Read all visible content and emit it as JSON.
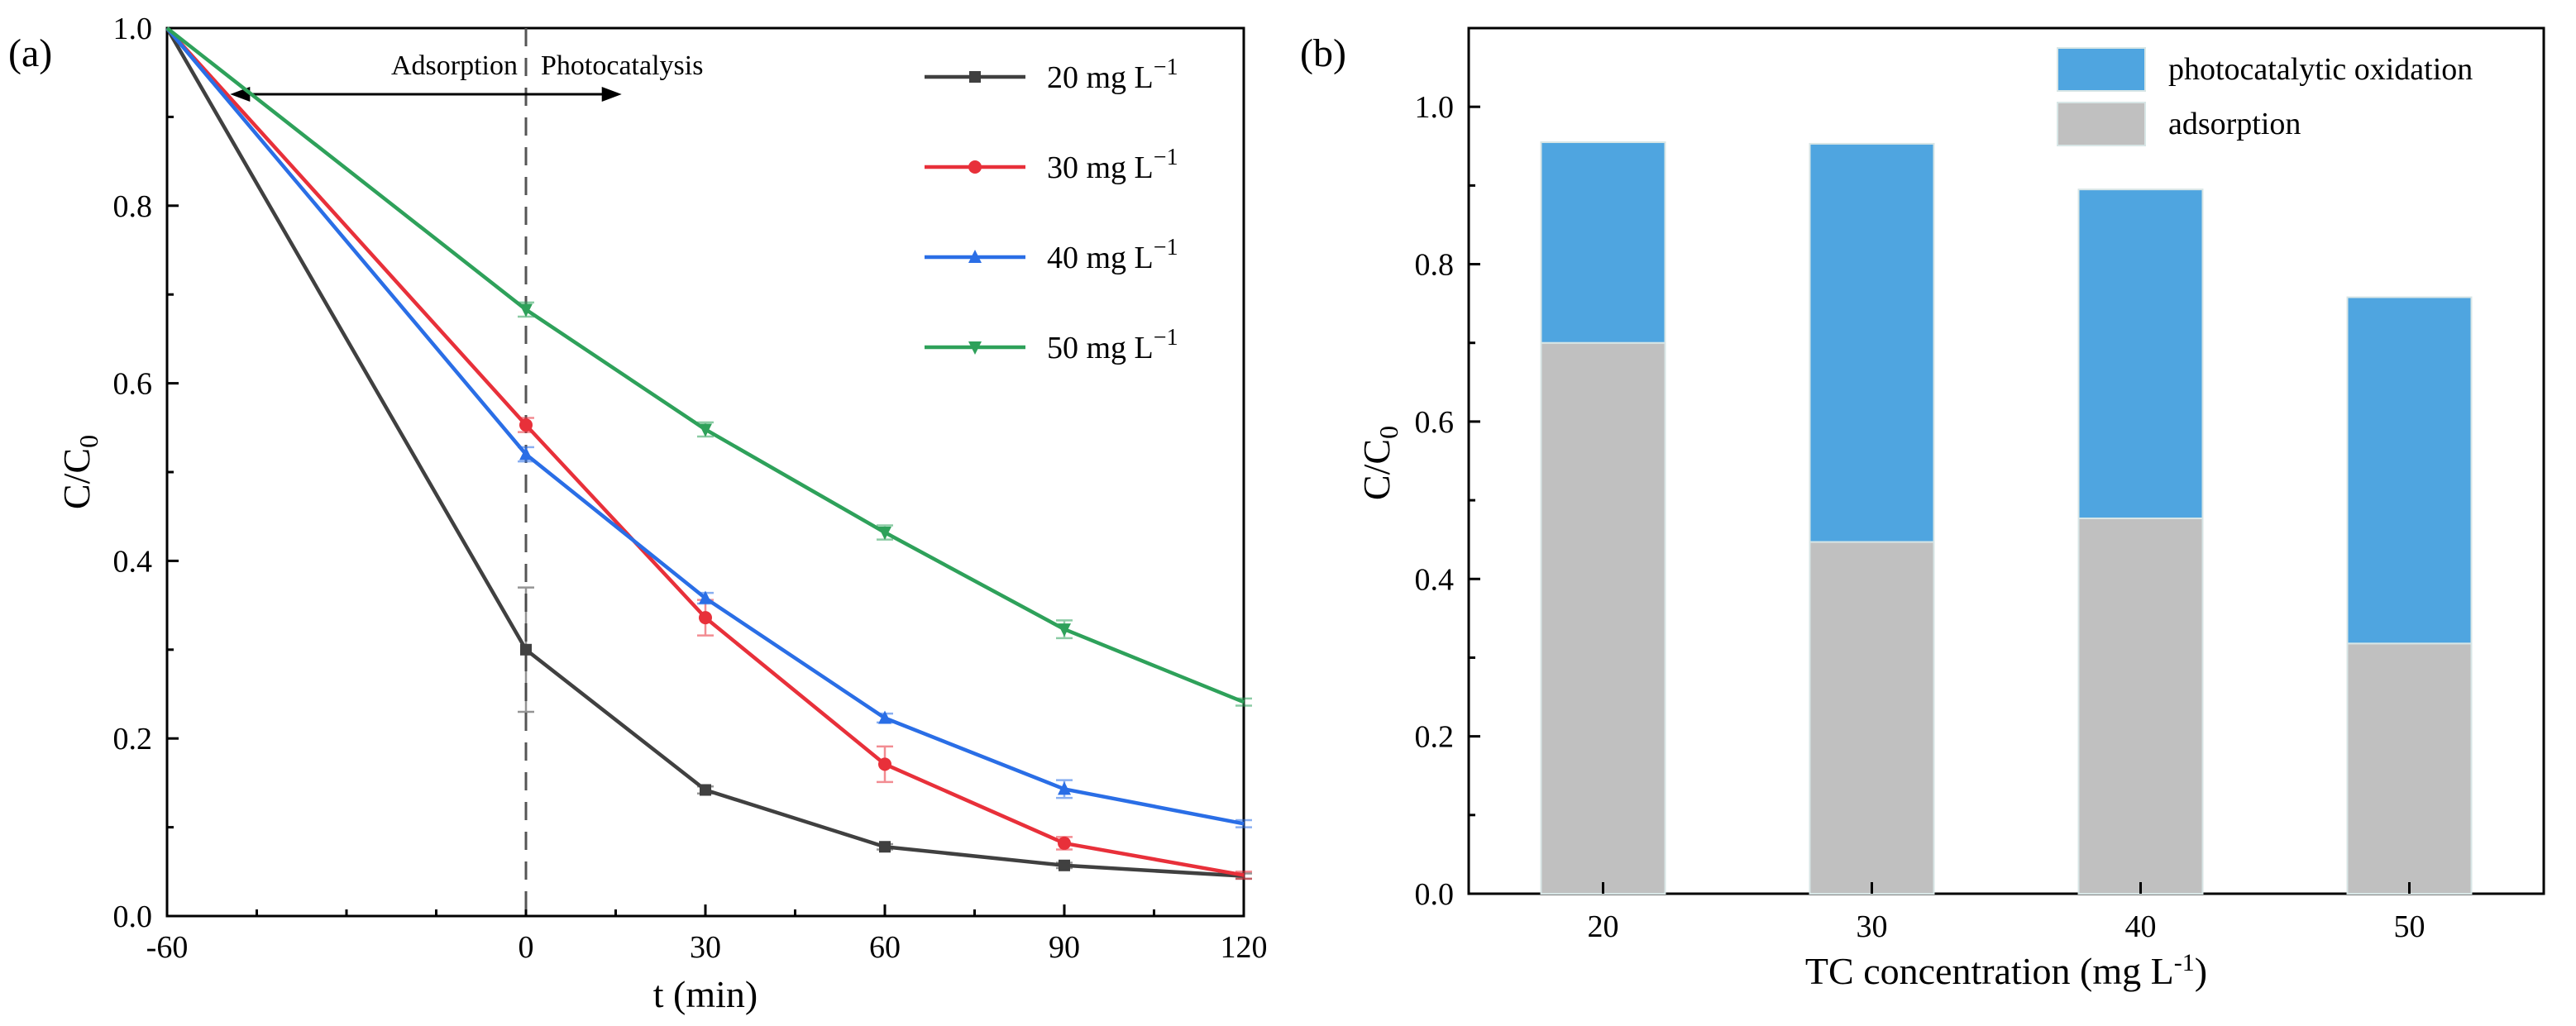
{
  "chart_data": [
    {
      "type": "line",
      "panel_label": "(a)",
      "xlabel": "t (min)",
      "ylabel": "C/C",
      "ylabel_sub": "0",
      "xlim": [
        -60,
        120
      ],
      "ylim": [
        0,
        1.0
      ],
      "xticks": [
        -60,
        0,
        30,
        60,
        90,
        120
      ],
      "xtick_labels": [
        "-60",
        "0",
        "30",
        "60",
        "90",
        "120"
      ],
      "yticks": [
        0,
        0.2,
        0.4,
        0.6,
        0.8,
        1.0
      ],
      "ytick_labels": [
        "0.0",
        "0.2",
        "0.4",
        "0.6",
        "0.8",
        "1.0"
      ],
      "x": [
        -60,
        0,
        30,
        60,
        90,
        120
      ],
      "annotations": {
        "divider_x": 0,
        "left_text": "Adsorption",
        "right_text": "Photocatalysis"
      },
      "legend_placement": "top-right",
      "series": [
        {
          "name": "20 mg L",
          "sup": "−1",
          "color": "#404040",
          "marker": "square",
          "values": [
            1.0,
            0.3,
            0.142,
            0.078,
            0.057,
            0.045
          ],
          "errors": [
            0,
            0.07,
            0.004,
            0.003,
            0.003,
            0.003
          ]
        },
        {
          "name": "30 mg L",
          "sup": "−1",
          "color": "#e8303a",
          "marker": "circle",
          "values": [
            1.0,
            0.553,
            0.336,
            0.171,
            0.082,
            0.046
          ],
          "errors": [
            0,
            0.008,
            0.02,
            0.02,
            0.007,
            0.004
          ]
        },
        {
          "name": "40 mg L",
          "sup": "−1",
          "color": "#2a6ee6",
          "marker": "triangle-up",
          "values": [
            1.0,
            0.52,
            0.358,
            0.223,
            0.143,
            0.104
          ],
          "errors": [
            0,
            0.008,
            0.006,
            0.005,
            0.01,
            0.004
          ]
        },
        {
          "name": "50 mg L",
          "sup": "−1",
          "color": "#2ea15a",
          "marker": "triangle-down",
          "values": [
            1.0,
            0.683,
            0.548,
            0.432,
            0.323,
            0.241
          ],
          "errors": [
            0,
            0.008,
            0.008,
            0.008,
            0.01,
            0.004
          ]
        }
      ]
    },
    {
      "type": "bar",
      "stacked": true,
      "panel_label": "(b)",
      "xlabel": "TC concentration (mg L",
      "xlabel_sup": "-1",
      "xlabel_end": ")",
      "ylabel": "C/C",
      "ylabel_sub": "0",
      "ylim": [
        0,
        1.1
      ],
      "yticks": [
        0,
        0.2,
        0.4,
        0.6,
        0.8,
        1.0
      ],
      "ytick_labels": [
        "0.0",
        "0.2",
        "0.4",
        "0.6",
        "0.8",
        "1.0"
      ],
      "categories": [
        "20",
        "30",
        "40",
        "50"
      ],
      "legend_placement": "top-right",
      "series": [
        {
          "name": "adsorption",
          "color": "#c0c0c0",
          "values": [
            0.7,
            0.447,
            0.477,
            0.318
          ]
        },
        {
          "name": "photocatalytic oxidation",
          "color": "#4fa5e0",
          "values": [
            0.255,
            0.506,
            0.418,
            0.44
          ]
        }
      ]
    }
  ]
}
